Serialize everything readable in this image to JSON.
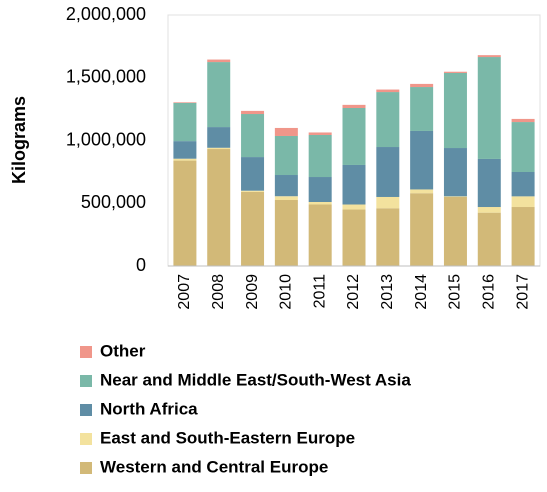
{
  "chart_data": {
    "type": "stacked_bar",
    "y_label": "Kilograms",
    "categories": [
      "2007",
      "2008",
      "2009",
      "2010",
      "2011",
      "2012",
      "2013",
      "2014",
      "2015",
      "2016",
      "2017"
    ],
    "series": [
      {
        "name": "Western and Central Europe",
        "color": "#d2b978",
        "values": [
          840000,
          932000,
          590000,
          526000,
          490000,
          450000,
          460000,
          580000,
          550000,
          425000,
          470000
        ]
      },
      {
        "name": "East and South-Eastern Europe",
        "color": "#f3e29e",
        "values": [
          15000,
          10000,
          10000,
          30000,
          20000,
          40000,
          90000,
          30000,
          5000,
          45000,
          85000
        ]
      },
      {
        "name": "North Africa",
        "color": "#5f8da5",
        "values": [
          140000,
          165000,
          268000,
          169000,
          199000,
          315000,
          398000,
          466000,
          385000,
          383000,
          194000
        ]
      },
      {
        "name": "Near and Middle East/South-West Asia",
        "color": "#7ab8a8",
        "values": [
          305000,
          518000,
          343000,
          311000,
          335000,
          454000,
          438000,
          350000,
          598000,
          812000,
          398000
        ]
      },
      {
        "name": "Other",
        "color": "#f0968a",
        "values": [
          5000,
          20000,
          25000,
          64000,
          20000,
          25000,
          20000,
          25000,
          10000,
          15000,
          25000
        ]
      }
    ],
    "ylim": [
      0,
      2000000
    ],
    "yticks": [
      0,
      {
        "value": 500000,
        "label": "500,000"
      },
      {
        "value": 1000000,
        "label": "1,000,000"
      },
      {
        "value": 1500000,
        "label": "1,500,000"
      },
      {
        "value": 2000000,
        "label": "2,000,000"
      }
    ],
    "grid": false,
    "legend": "bottom"
  }
}
